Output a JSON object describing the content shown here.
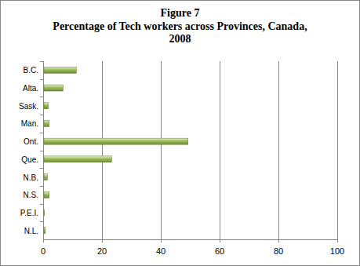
{
  "chart_data": {
    "type": "bar",
    "title": "Figure 7",
    "subtitle": "Percentage of Tech workers across Provinces, Canada, 2008",
    "orientation": "horizontal",
    "categories": [
      "B.C.",
      "Alta.",
      "Sask.",
      "Man.",
      "Ont.",
      "Que.",
      "N.B.",
      "N.S.",
      "P.E.I.",
      "N.L."
    ],
    "values": [
      11,
      6.5,
      1.5,
      1.8,
      49,
      23,
      1.2,
      1.8,
      0.2,
      0.5
    ],
    "color": "#9bbb59",
    "xlim": [
      0,
      100
    ],
    "xticks": [
      0,
      20,
      40,
      60,
      80,
      100
    ],
    "grid": true
  }
}
